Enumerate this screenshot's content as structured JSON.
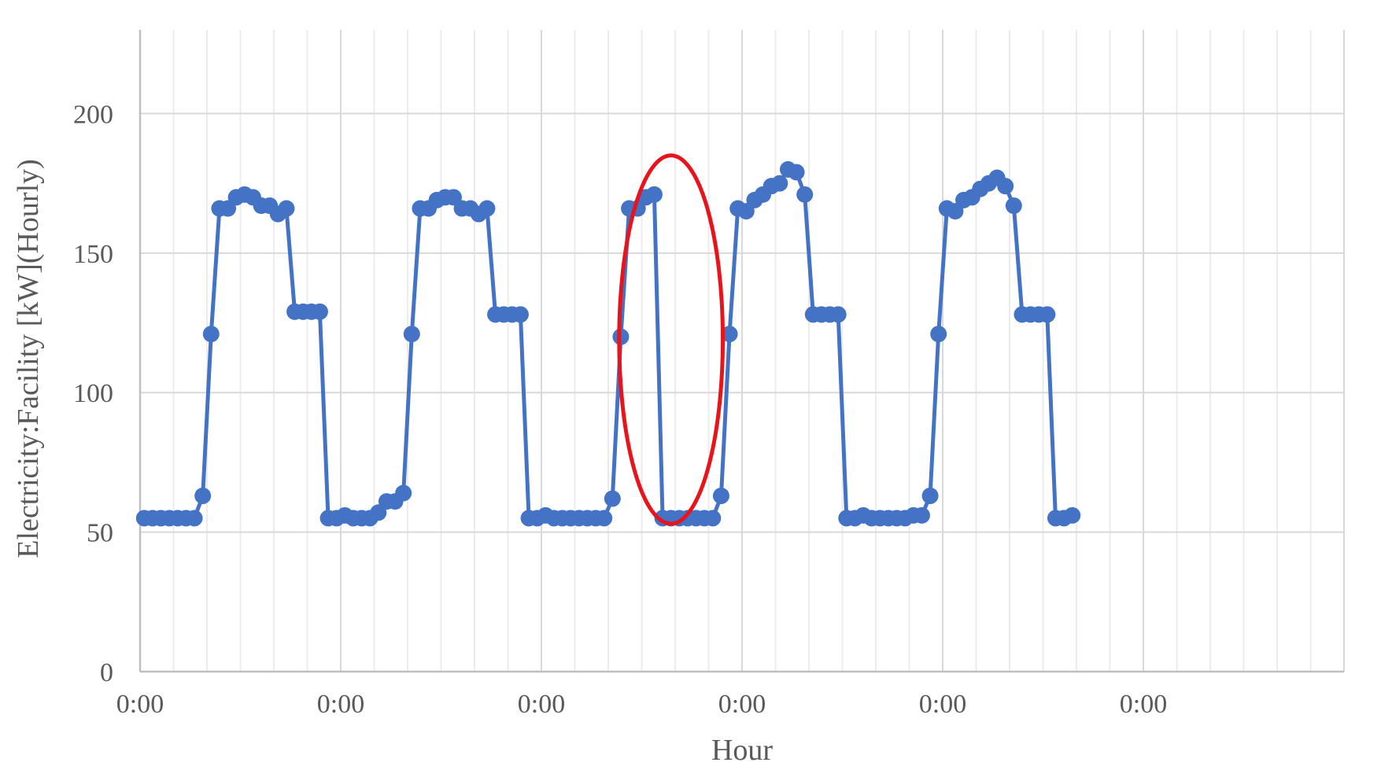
{
  "chart_data": {
    "type": "line",
    "xlabel": "Hour",
    "ylabel": "Electricity:Facility [kW](Hourly)",
    "ylim": [
      0,
      230
    ],
    "y_ticks": [
      0,
      50,
      100,
      150,
      200
    ],
    "x_tick_labels": [
      "0:00",
      "0:00",
      "0:00",
      "0:00",
      "0:00",
      "0:00"
    ],
    "grid": true,
    "series_color": "#4472C4",
    "highlight_color": "#E8141C",
    "annotation": "red ellipse around anomalous day 3 afternoon drop",
    "series": [
      {
        "values": [
          55,
          55,
          55,
          55,
          55,
          55,
          55,
          63,
          121,
          166,
          166,
          170,
          171,
          170,
          167,
          167,
          164,
          166,
          129,
          129,
          129,
          129,
          55,
          55,
          56,
          55,
          55,
          55,
          57,
          61,
          61,
          64,
          121,
          166,
          166,
          169,
          170,
          170,
          166,
          166,
          164,
          166,
          128,
          128,
          128,
          128,
          55,
          55,
          56,
          55,
          55,
          55,
          55,
          55,
          55,
          55,
          62,
          120,
          166,
          166,
          170,
          171,
          55,
          55,
          55,
          55,
          55,
          55,
          55,
          63,
          121,
          166,
          165,
          169,
          171,
          174,
          175,
          180,
          179,
          171,
          128,
          128,
          128,
          128,
          55,
          55,
          56,
          55,
          55,
          55,
          55,
          55,
          56,
          56,
          63,
          121,
          166,
          165,
          169,
          170,
          173,
          175,
          177,
          174,
          167,
          128,
          128,
          128,
          128,
          55,
          55,
          56
        ]
      }
    ]
  }
}
